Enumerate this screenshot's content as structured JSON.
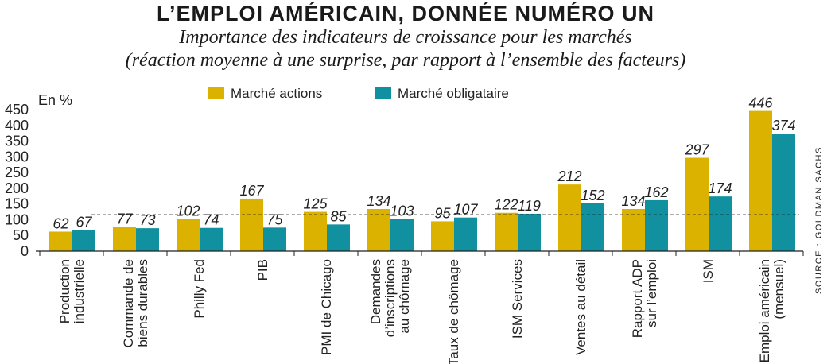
{
  "chart_data": {
    "type": "bar",
    "title": "L’EMPLOI AMÉRICAIN, DONNÉE NUMÉRO UN",
    "subtitle_line1": "Importance des indicateurs de croissance pour les marchés",
    "subtitle_line2": "(réaction moyenne à une surprise, par rapport à l’ensemble des facteurs)",
    "ylabel": "En %",
    "ylim": [
      0,
      450
    ],
    "yticks": [
      "0",
      "50",
      "100",
      "150",
      "200",
      "250",
      "300",
      "350",
      "400",
      "450"
    ],
    "reference_line": 116,
    "legend_position": "top-center",
    "source": "SOURCE : GOLDMAN SACHS",
    "categories": [
      [
        "Production",
        "industrielle"
      ],
      [
        "Commande de",
        "biens durables"
      ],
      [
        "Philly Fed"
      ],
      [
        "PIB"
      ],
      [
        "PMI de Chicago"
      ],
      [
        "Demandes",
        "d’inscriptions",
        "au chômage"
      ],
      [
        "Taux de chômage"
      ],
      [
        "ISM Services"
      ],
      [
        "Ventes au détail"
      ],
      [
        "Rapport ADP",
        "sur l’emploi"
      ],
      [
        "ISM"
      ],
      [
        "Emploi américain",
        "(mensuel)"
      ]
    ],
    "series": [
      {
        "name": "Marché actions",
        "color": "#dcb200",
        "values": [
          62,
          77,
          102,
          167,
          125,
          134,
          95,
          122,
          212,
          134,
          297,
          446
        ]
      },
      {
        "name": "Marché obligataire",
        "color": "#11919f",
        "values": [
          67,
          73,
          74,
          75,
          85,
          103,
          107,
          119,
          152,
          162,
          174,
          374
        ]
      }
    ]
  }
}
